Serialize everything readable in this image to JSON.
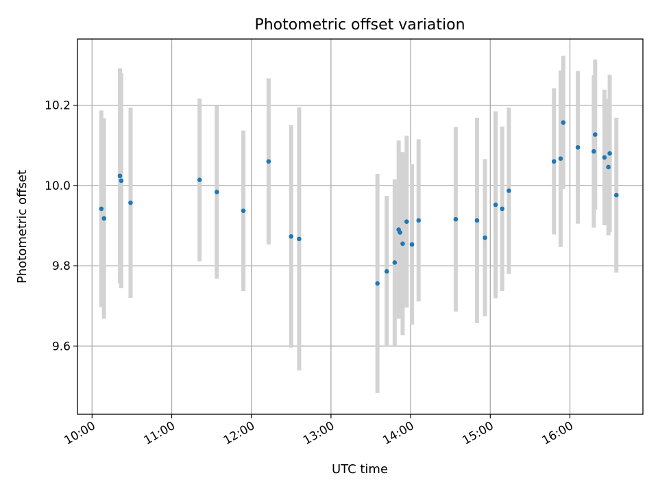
{
  "chart_data": {
    "type": "scatter",
    "title": "Photometric offset variation",
    "xlabel": "UTC time",
    "ylabel": "Photometric offset",
    "x_ticks": [
      "10:00",
      "11:00",
      "12:00",
      "13:00",
      "14:00",
      "15:00",
      "16:00"
    ],
    "y_ticks": [
      "9.6",
      "9.8",
      "10.0",
      "10.2"
    ],
    "xlim": [
      "09:49",
      "16:55"
    ],
    "ylim": [
      9.43,
      10.365
    ],
    "grid": true,
    "colors": {
      "point": "#1f77b4",
      "errorbar": "#d3d3d3"
    },
    "series": [
      {
        "points": [
          {
            "x": "10:07",
            "y": 9.942,
            "yerr": 0.245
          },
          {
            "x": "10:09",
            "y": 9.918,
            "yerr": 0.25
          },
          {
            "x": "10:21",
            "y": 10.024,
            "yerr": 0.268
          },
          {
            "x": "10:22",
            "y": 10.012,
            "yerr": 0.268
          },
          {
            "x": "10:29",
            "y": 9.957,
            "yerr": 0.237
          },
          {
            "x": "11:21",
            "y": 10.014,
            "yerr": 0.203
          },
          {
            "x": "11:34",
            "y": 9.984,
            "yerr": 0.216
          },
          {
            "x": "11:54",
            "y": 9.937,
            "yerr": 0.2
          },
          {
            "x": "12:13",
            "y": 10.06,
            "yerr": 0.207
          },
          {
            "x": "12:30",
            "y": 9.873,
            "yerr": 0.277
          },
          {
            "x": "12:36",
            "y": 9.867,
            "yerr": 0.328
          },
          {
            "x": "13:35",
            "y": 9.756,
            "yerr": 0.273
          },
          {
            "x": "13:42",
            "y": 9.786,
            "yerr": 0.188
          },
          {
            "x": "13:48",
            "y": 9.808,
            "yerr": 0.207
          },
          {
            "x": "13:51",
            "y": 9.89,
            "yerr": 0.222
          },
          {
            "x": "13:52",
            "y": 9.883,
            "yerr": 0.2
          },
          {
            "x": "13:54",
            "y": 9.855,
            "yerr": 0.228
          },
          {
            "x": "13:57",
            "y": 9.91,
            "yerr": 0.214
          },
          {
            "x": "14:01",
            "y": 9.853,
            "yerr": 0.2
          },
          {
            "x": "14:06",
            "y": 9.913,
            "yerr": 0.202
          },
          {
            "x": "14:34",
            "y": 9.916,
            "yerr": 0.23
          },
          {
            "x": "14:50",
            "y": 9.913,
            "yerr": 0.256
          },
          {
            "x": "14:56",
            "y": 9.87,
            "yerr": 0.196
          },
          {
            "x": "15:04",
            "y": 9.952,
            "yerr": 0.233
          },
          {
            "x": "15:09",
            "y": 9.942,
            "yerr": 0.205
          },
          {
            "x": "15:14",
            "y": 9.987,
            "yerr": 0.207
          },
          {
            "x": "15:48",
            "y": 10.06,
            "yerr": 0.182
          },
          {
            "x": "15:53",
            "y": 10.067,
            "yerr": 0.22
          },
          {
            "x": "15:55",
            "y": 10.157,
            "yerr": 0.166
          },
          {
            "x": "16:06",
            "y": 10.095,
            "yerr": 0.19
          },
          {
            "x": "16:18",
            "y": 10.085,
            "yerr": 0.19
          },
          {
            "x": "16:19",
            "y": 10.127,
            "yerr": 0.187
          },
          {
            "x": "16:26",
            "y": 10.07,
            "yerr": 0.169
          },
          {
            "x": "16:29",
            "y": 10.046,
            "yerr": 0.17
          },
          {
            "x": "16:30",
            "y": 10.08,
            "yerr": 0.196
          },
          {
            "x": "16:35",
            "y": 9.976,
            "yerr": 0.193
          }
        ]
      }
    ]
  }
}
